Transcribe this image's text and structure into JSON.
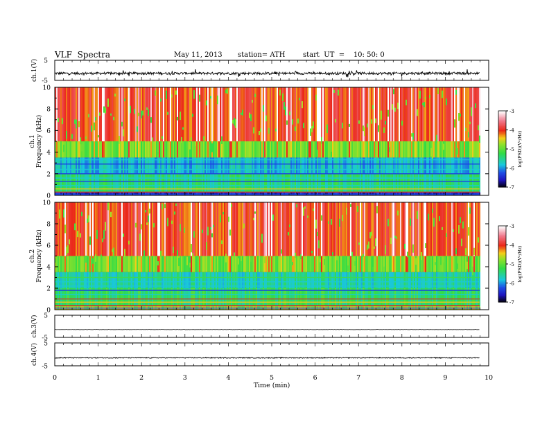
{
  "header": {
    "title": "VLF  Spectra",
    "date": "May 11, 2013",
    "station": "station= ATH",
    "start": "start  UT  =    10: 50: 0"
  },
  "chart_data": [
    {
      "type": "line",
      "panel": "ch1-waveform",
      "ylabel": "ch.1(V)",
      "ylim": [
        -5,
        5
      ],
      "yticks": [
        "5",
        "-5"
      ],
      "xlim": [
        0,
        10
      ],
      "note": "broadband noisy signal around ~-1.5 V",
      "series": [
        {
          "values_approx": {
            "mean": -1.5,
            "spread": 1.2
          }
        }
      ]
    },
    {
      "type": "heatmap",
      "panel": "ch1-spectrogram",
      "ylabel": "ch.1\nFrequency  (kHz)",
      "ylim": [
        0,
        10
      ],
      "yticks": [
        "0",
        "2",
        "4",
        "6",
        "8",
        "10"
      ],
      "xlim": [
        0,
        9.8
      ],
      "colorbar": {
        "label": "log(PSD)(V²/Hz)",
        "ticks": [
          "-3",
          "-4",
          "-5",
          "-6",
          "-7"
        ],
        "range": [
          -7,
          -3
        ]
      },
      "bands_khz": [
        {
          "from": 5,
          "to": 10,
          "level": -4.0
        },
        {
          "from": 3.5,
          "to": 5,
          "level": -4.9
        },
        {
          "from": 2,
          "to": 3.5,
          "level": -5.8
        },
        {
          "from": 0.3,
          "to": 2,
          "level": -5.4
        },
        {
          "from": 0,
          "to": 0.3,
          "level": -6.5
        }
      ]
    },
    {
      "type": "heatmap",
      "panel": "ch2-spectrogram",
      "ylabel": "ch.2\nFrequency  (kHz)",
      "ylim": [
        0,
        10
      ],
      "yticks": [
        "0",
        "2",
        "4",
        "6",
        "8",
        "10"
      ],
      "xlim": [
        0,
        9.8
      ],
      "colorbar": {
        "label": "log(PSD)(V²/Hz)",
        "ticks": [
          "-3",
          "-4",
          "-5",
          "-6",
          "-7"
        ],
        "range": [
          -7,
          -3
        ]
      },
      "bands_khz": [
        {
          "from": 5,
          "to": 10,
          "level": -4.0
        },
        {
          "from": 3.5,
          "to": 5,
          "level": -4.9
        },
        {
          "from": 2,
          "to": 3.5,
          "level": -5.6
        },
        {
          "from": 0.3,
          "to": 2,
          "level": -5.3
        },
        {
          "from": 0,
          "to": 0.3,
          "level": -4.6
        }
      ]
    },
    {
      "type": "line",
      "panel": "ch3-waveform",
      "ylabel": "ch.3(V)",
      "ylim": [
        -5,
        5
      ],
      "yticks": [
        "5",
        "-5"
      ],
      "xlim": [
        0,
        10
      ],
      "series": [
        {
          "values_approx": {
            "mean": -1.5,
            "spread": 0.1
          }
        }
      ]
    },
    {
      "type": "line",
      "panel": "ch4-waveform",
      "ylabel": "ch.4(V)",
      "ylim": [
        -5,
        5
      ],
      "yticks": [
        "5",
        "-5"
      ],
      "xlim": [
        0,
        10
      ],
      "series": [
        {
          "values_approx": {
            "mean": -1.5,
            "spread": 0.4
          }
        }
      ]
    }
  ],
  "xaxis": {
    "label": "Time  (min)",
    "ticks": [
      "0",
      "1",
      "2",
      "3",
      "4",
      "5",
      "6",
      "7",
      "8",
      "9",
      "10"
    ]
  },
  "colors": {
    "strong": "#e8231a",
    "mid": "#f2c21a",
    "weak": "#3fd94a",
    "low": "#19c9d6",
    "floor": "#1b3fe0"
  }
}
